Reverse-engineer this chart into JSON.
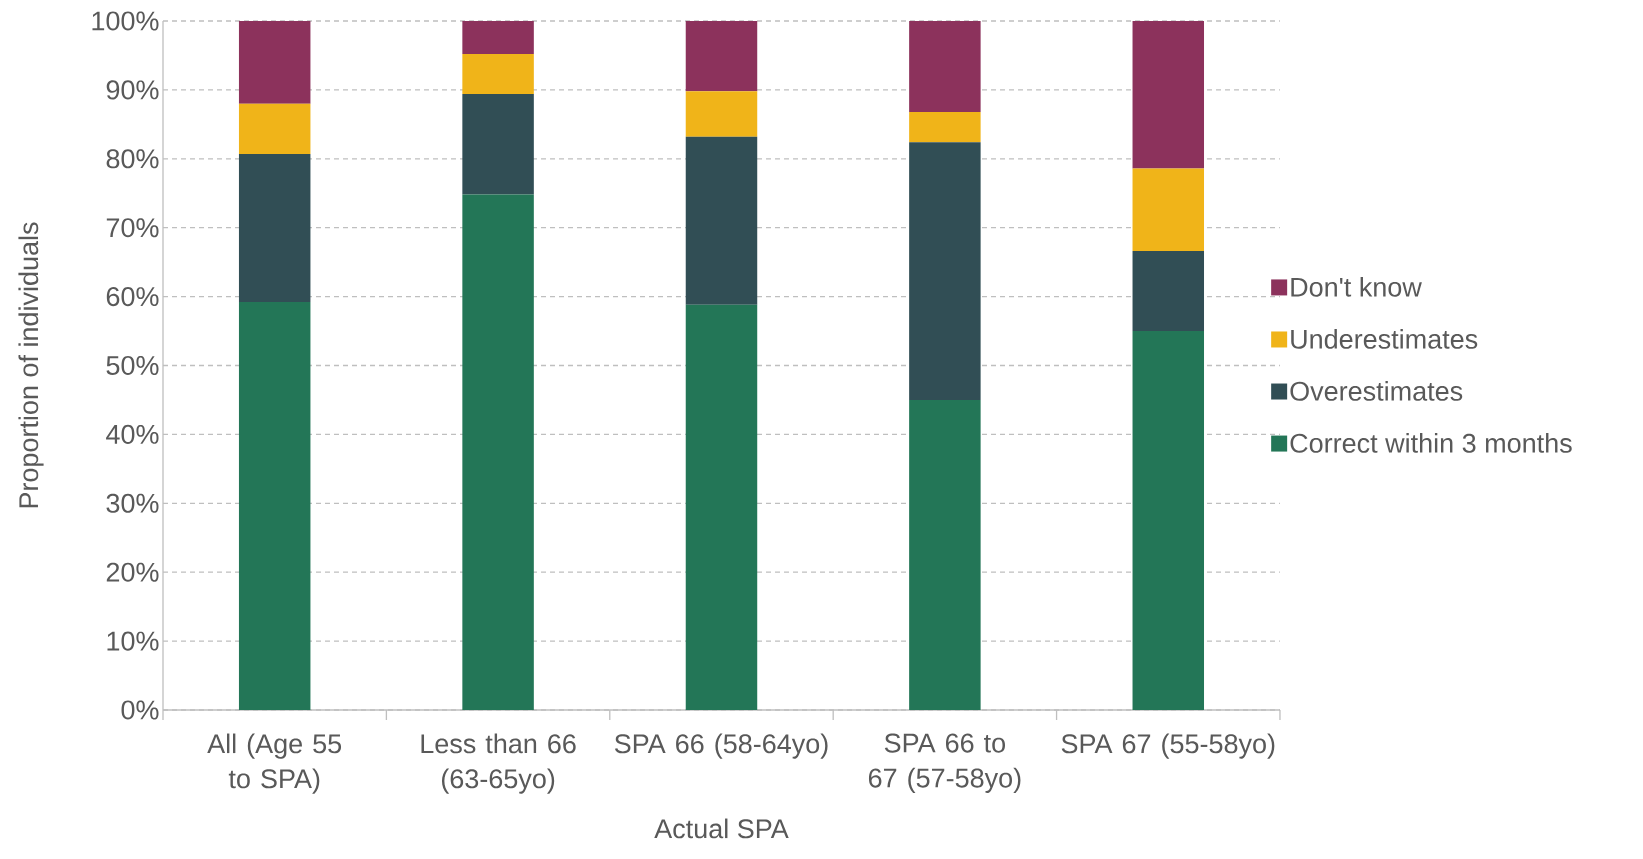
{
  "chart_data": {
    "type": "bar",
    "stacked": true,
    "xlabel": "Actual SPA",
    "ylabel": "Proportion of individuals",
    "categories": [
      "All (Age 55 to SPA)",
      "Less than 66 (63-65yo)",
      "SPA 66 (58-64yo)",
      "SPA 66 to 67 (57-58yo)",
      "SPA 67 (55-58yo)"
    ],
    "series": [
      {
        "name": "Correct within 3 months",
        "color": "#237657",
        "values": [
          59.2,
          74.8,
          58.8,
          45.0,
          55.0
        ]
      },
      {
        "name": "Overestimates",
        "color": "#314e55",
        "values": [
          21.5,
          14.6,
          24.4,
          37.4,
          11.6
        ]
      },
      {
        "name": "Underestimates",
        "color": "#f0b419",
        "values": [
          7.3,
          5.8,
          6.6,
          4.4,
          12.0
        ]
      },
      {
        "name": "Don't know",
        "color": "#8c325c",
        "values": [
          12.0,
          4.8,
          10.2,
          13.2,
          21.4
        ]
      }
    ],
    "ylim": [
      0,
      100
    ],
    "yticks": [
      {
        "value": 0,
        "label": "0%"
      },
      {
        "value": 10,
        "label": "10%"
      },
      {
        "value": 20,
        "label": "20%"
      },
      {
        "value": 30,
        "label": "30%"
      },
      {
        "value": 40,
        "label": "40%"
      },
      {
        "value": 50,
        "label": "50%"
      },
      {
        "value": 60,
        "label": "60%"
      },
      {
        "value": 70,
        "label": "70%"
      },
      {
        "value": 80,
        "label": "80%"
      },
      {
        "value": 90,
        "label": "90%"
      },
      {
        "value": 100,
        "label": "100%"
      }
    ],
    "grid": "y",
    "legend": "right"
  }
}
